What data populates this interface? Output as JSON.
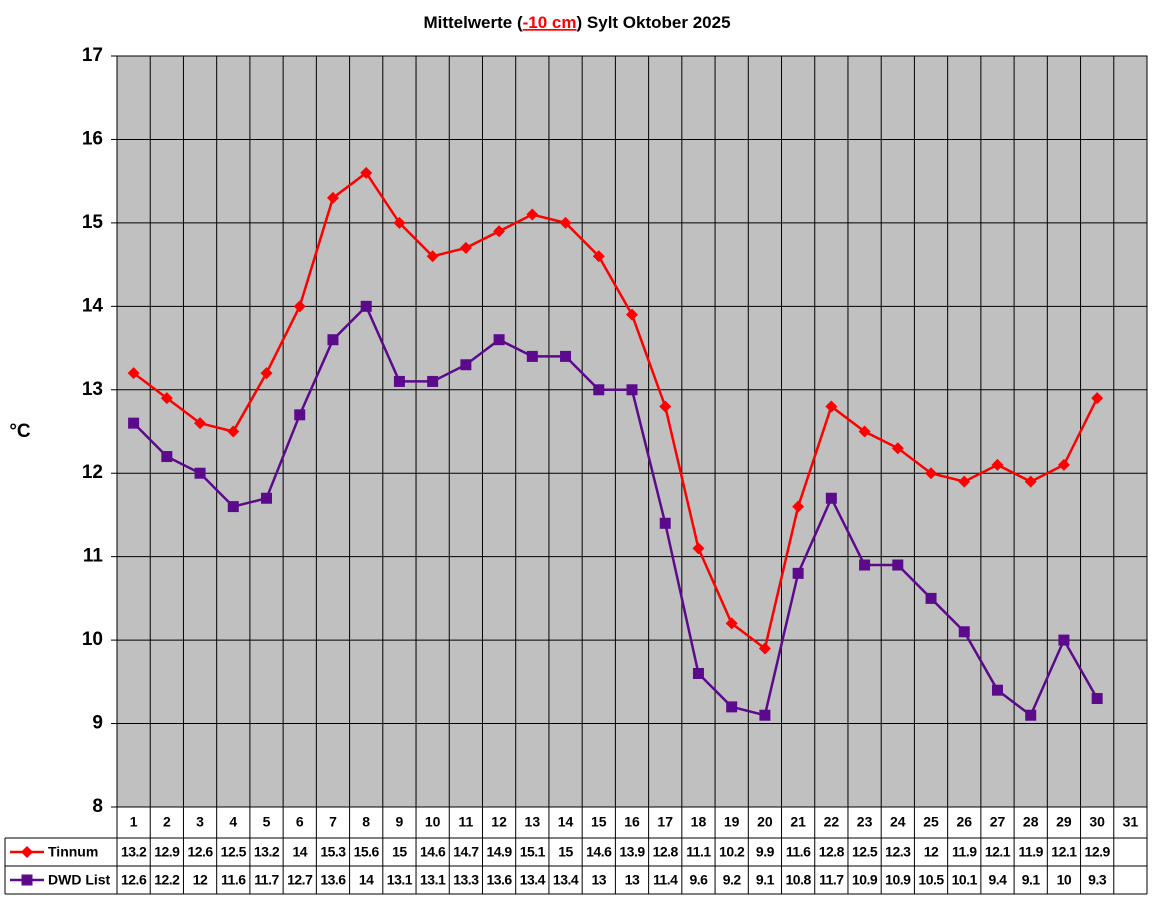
{
  "chart_data": {
    "type": "line",
    "title": [
      "Mittelwerte (",
      "-10 cm",
      ") Sylt Oktober 2025"
    ],
    "y_label": "°C",
    "categories": [
      "1",
      "2",
      "3",
      "4",
      "5",
      "6",
      "7",
      "8",
      "9",
      "10",
      "11",
      "12",
      "13",
      "14",
      "15",
      "16",
      "17",
      "18",
      "19",
      "20",
      "21",
      "22",
      "23",
      "24",
      "25",
      "26",
      "27",
      "28",
      "29",
      "30",
      "31"
    ],
    "series": [
      {
        "name": "Tinnum",
        "color": "#ff0000",
        "marker": "diamond",
        "values": [
          13.2,
          12.9,
          12.6,
          12.5,
          13.2,
          14,
          15.3,
          15.6,
          15,
          14.6,
          14.7,
          14.9,
          15.1,
          15,
          14.6,
          13.9,
          12.8,
          11.1,
          10.2,
          9.9,
          11.6,
          12.8,
          12.5,
          12.3,
          12,
          11.9,
          12.1,
          11.9,
          12.1,
          12.9,
          null
        ]
      },
      {
        "name": "DWD List",
        "color": "#5c0a8c",
        "marker": "square",
        "values": [
          12.6,
          12.2,
          12,
          11.6,
          11.7,
          12.7,
          13.6,
          14,
          13.1,
          13.1,
          13.3,
          13.6,
          13.4,
          13.4,
          13,
          13,
          11.4,
          9.6,
          9.2,
          9.1,
          10.8,
          11.7,
          10.9,
          10.9,
          10.5,
          10.1,
          9.4,
          9.1,
          10,
          9.3,
          null
        ]
      }
    ],
    "ylim": [
      8,
      17
    ],
    "yticks": [
      8,
      9,
      10,
      11,
      12,
      13,
      14,
      15,
      16,
      17
    ],
    "grid": true
  }
}
